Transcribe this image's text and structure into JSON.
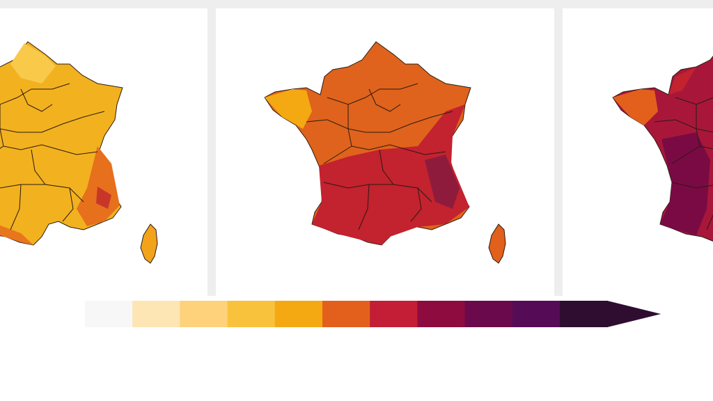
{
  "colorbar": {
    "colors": [
      "#f7f7f7",
      "#fde5b4",
      "#fdd27a",
      "#f9c23c",
      "#f4a912",
      "#e3601c",
      "#c31e35",
      "#8e0b40",
      "#6a0a4c",
      "#560b57",
      "#2f0d31"
    ]
  }
}
